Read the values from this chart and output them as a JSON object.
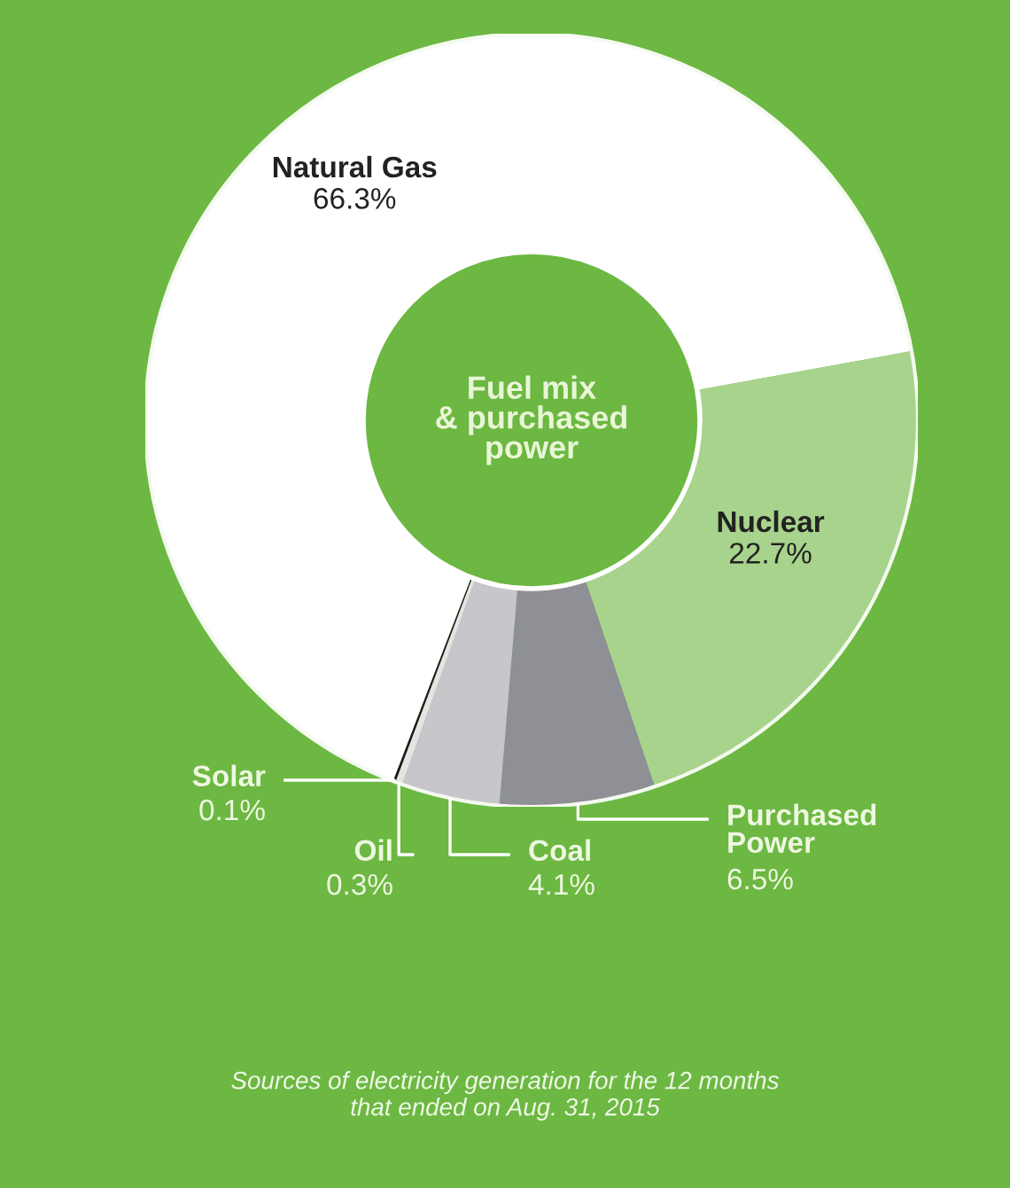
{
  "chart_data": {
    "type": "donut",
    "title": "Fuel mix\n& purchased\npower",
    "categories": [
      "Natural Gas",
      "Nuclear",
      "Purchased\nPower",
      "Coal",
      "Oil",
      "Solar"
    ],
    "values": [
      66.3,
      22.7,
      6.5,
      4.1,
      0.3,
      0.1
    ],
    "value_labels": [
      "66.3%",
      "22.7%",
      "6.5%",
      "4.1%",
      "0.3%",
      "0.1%"
    ],
    "colors": [
      "#ffffff",
      "#a8d38c",
      "#8f8f96",
      "#c6c6cb",
      "#e4e4e4",
      "#1a1a1a"
    ],
    "annotations": [
      "Sources of electricity generation for the 12 months\nthat ended on Aug. 31, 2015"
    ]
  }
}
